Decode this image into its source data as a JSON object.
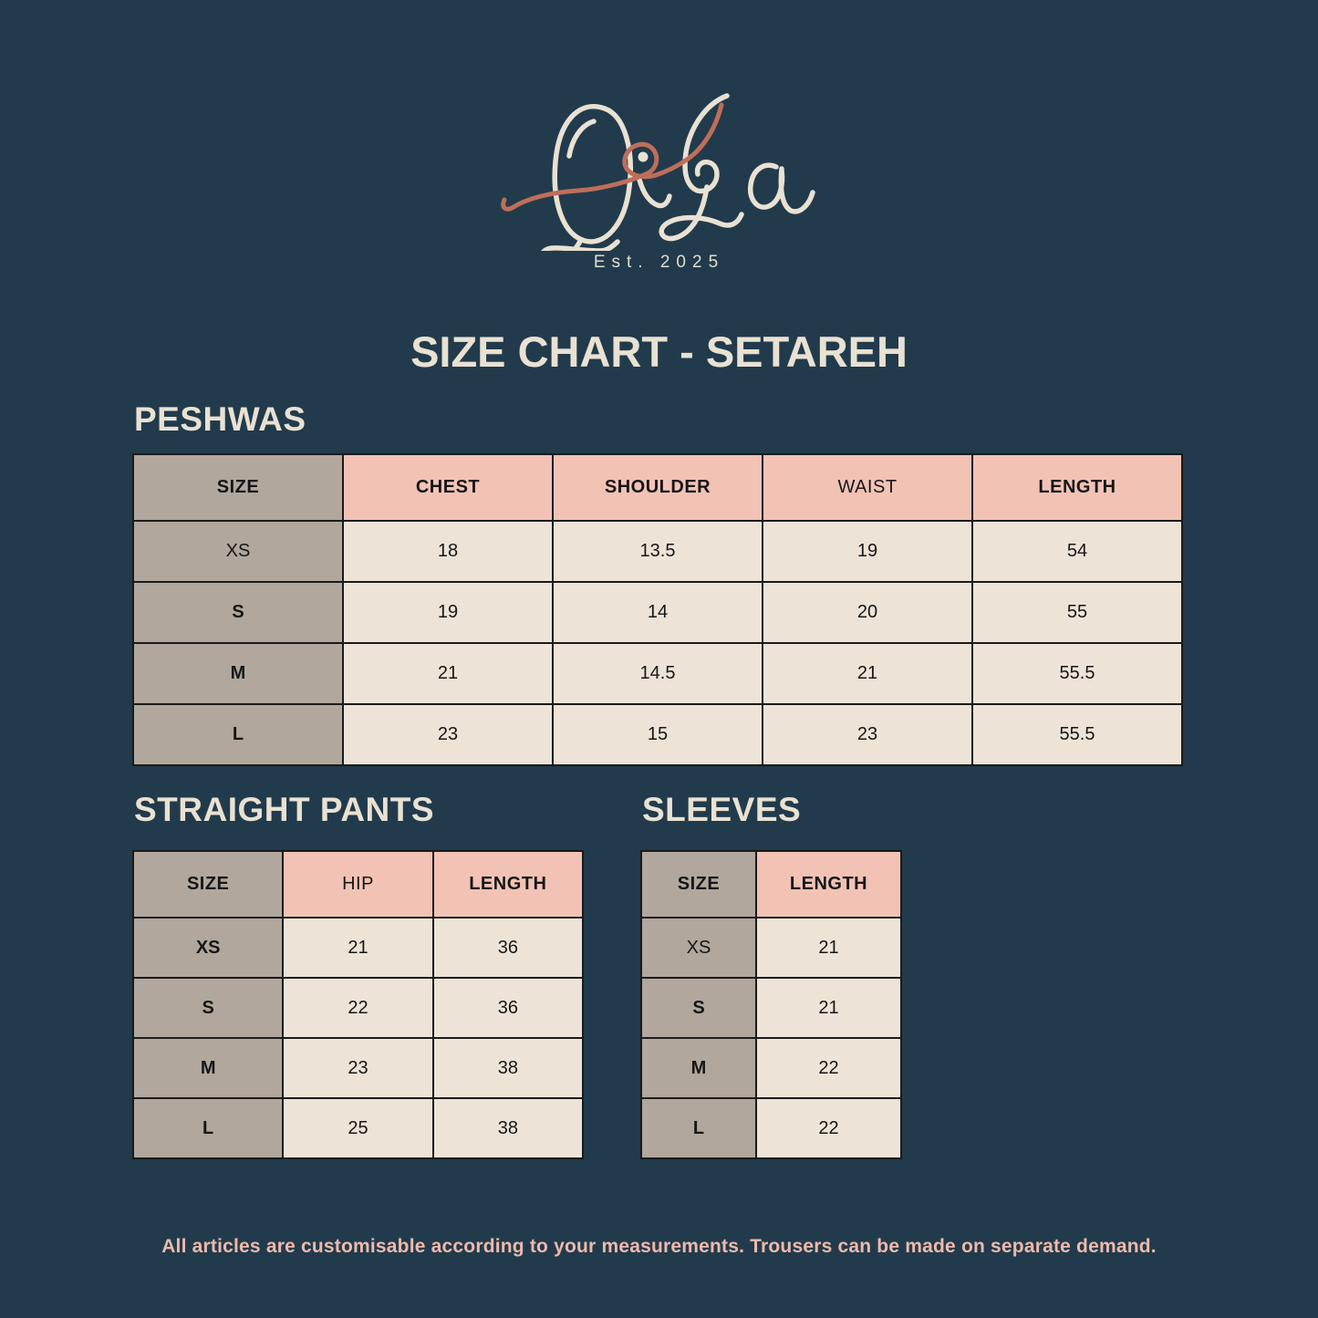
{
  "page": {
    "title": "SIZE CHART - SETAREH",
    "footer_note": "All articles are customisable according to your measurements. Trousers can be made on separate demand."
  },
  "logo": {
    "brand": "QiSa",
    "tagline": "Est. 2025"
  },
  "colors": {
    "background": "#213B4C",
    "heading_text": "#E9E1D2",
    "est_text": "#E3DCCD",
    "logo_cream": "#E9E1D2",
    "logo_terracotta": "#BE6E59",
    "table_border": "#1A1A1A",
    "size_header_bg": "#B1A79C",
    "measure_header_bg": "#F2C3B5",
    "cell_bg": "#EDE4D7",
    "cell_text": "#161616",
    "footer_text": "#EFB9AC"
  },
  "tables": [
    {
      "heading": "PESHWAS",
      "columns": [
        {
          "label": "SIZE",
          "bold": true
        },
        {
          "label": "CHEST",
          "bold": true
        },
        {
          "label": "SHOULDER",
          "bold": true
        },
        {
          "label": "WAIST",
          "bold": false
        },
        {
          "label": "LENGTH",
          "bold": true
        }
      ],
      "rows": [
        {
          "size": "XS",
          "size_bold": false,
          "values": [
            "18",
            "13.5",
            "19",
            "54"
          ]
        },
        {
          "size": "S",
          "size_bold": true,
          "values": [
            "19",
            "14",
            "20",
            "55"
          ]
        },
        {
          "size": "M",
          "size_bold": true,
          "values": [
            "21",
            "14.5",
            "21",
            "55.5"
          ]
        },
        {
          "size": "L",
          "size_bold": true,
          "values": [
            "23",
            "15",
            "23",
            "55.5"
          ]
        }
      ]
    },
    {
      "heading": "STRAIGHT PANTS",
      "columns": [
        {
          "label": "SIZE",
          "bold": true
        },
        {
          "label": "HIP",
          "bold": false
        },
        {
          "label": "LENGTH",
          "bold": true
        }
      ],
      "rows": [
        {
          "size": "XS",
          "size_bold": true,
          "values": [
            "21",
            "36"
          ]
        },
        {
          "size": "S",
          "size_bold": true,
          "values": [
            "22",
            "36"
          ]
        },
        {
          "size": "M",
          "size_bold": true,
          "values": [
            "23",
            "38"
          ]
        },
        {
          "size": "L",
          "size_bold": true,
          "values": [
            "25",
            "38"
          ]
        }
      ]
    },
    {
      "heading": "SLEEVES",
      "columns": [
        {
          "label": "SIZE",
          "bold": true
        },
        {
          "label": "LENGTH",
          "bold": true
        }
      ],
      "rows": [
        {
          "size": "XS",
          "size_bold": false,
          "values": [
            "21"
          ]
        },
        {
          "size": "S",
          "size_bold": true,
          "values": [
            "21"
          ]
        },
        {
          "size": "M",
          "size_bold": true,
          "values": [
            "22"
          ]
        },
        {
          "size": "L",
          "size_bold": true,
          "values": [
            "22"
          ]
        }
      ]
    }
  ]
}
